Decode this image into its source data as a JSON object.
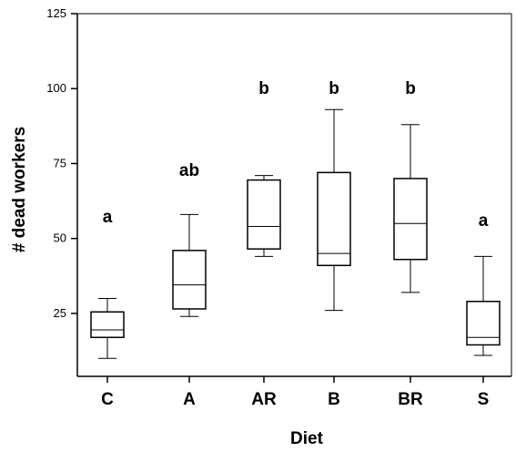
{
  "chart_data": {
    "type": "boxplot",
    "title": "",
    "xlabel": "Diet",
    "ylabel": "# dead workers",
    "ylim": [
      4,
      125
    ],
    "yticks": [
      25,
      50,
      75,
      100,
      125
    ],
    "categories": [
      "C",
      "A",
      "AR",
      "B",
      "BR",
      "S"
    ],
    "boxes": [
      {
        "category": "C",
        "min": 10,
        "q1": 17,
        "median": 19.5,
        "q3": 25.5,
        "max": 30,
        "group": "a"
      },
      {
        "category": "A",
        "min": 24,
        "q1": 26.5,
        "median": 34.5,
        "q3": 46,
        "max": 58,
        "group": "ab"
      },
      {
        "category": "AR",
        "min": 44,
        "q1": 46.5,
        "median": 54,
        "q3": 69.5,
        "max": 71,
        "group": "b"
      },
      {
        "category": "B",
        "min": 26,
        "q1": 41,
        "median": 45,
        "q3": 72,
        "max": 93,
        "group": "b"
      },
      {
        "category": "BR",
        "min": 32,
        "q1": 43,
        "median": 55,
        "q3": 70,
        "max": 88,
        "group": "b"
      },
      {
        "category": "S",
        "min": 11,
        "q1": 14.5,
        "median": 17,
        "q3": 29,
        "max": 44,
        "group": "a"
      }
    ],
    "grid": false,
    "legend": "none"
  }
}
